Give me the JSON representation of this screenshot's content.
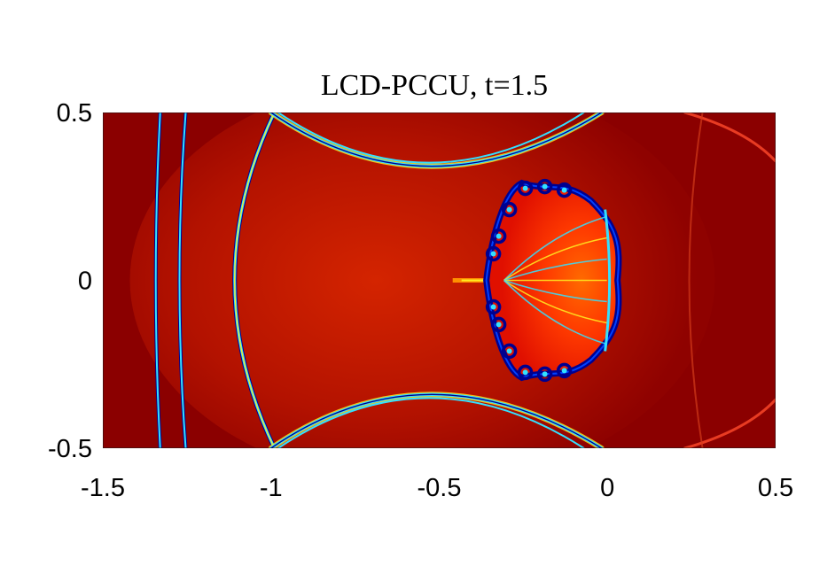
{
  "chart_data": {
    "type": "heatmap",
    "title": "LCD-PCCU, t=1.5",
    "xlabel": "",
    "ylabel": "",
    "xlim": [
      -1.5,
      0.5
    ],
    "ylim": [
      -0.5,
      0.5
    ],
    "x_ticks": [
      {
        "value": -1.5,
        "label": "-1.5"
      },
      {
        "value": -1.0,
        "label": "-1"
      },
      {
        "value": -0.5,
        "label": "-0.5"
      },
      {
        "value": 0.0,
        "label": "0"
      },
      {
        "value": 0.5,
        "label": "0.5"
      }
    ],
    "y_ticks": [
      {
        "value": 0.5,
        "label": "0.5"
      },
      {
        "value": 0.0,
        "label": "0"
      },
      {
        "value": -0.5,
        "label": "-0.5"
      }
    ],
    "colormap": "jet",
    "colors": {
      "background_field": "#8b0000",
      "mid_field": "#c81a00",
      "bubble_core": "#ff9000",
      "interface": "#00008f",
      "shock_cyan": "#33e0ff",
      "shock_yellow": "#ffee22"
    },
    "features": [
      {
        "kind": "vertical_shock",
        "x": -1.34
      },
      {
        "kind": "vertical_shock",
        "x": -1.28
      },
      {
        "kind": "curved_shock",
        "apex_x": -1.2,
        "top_x": -0.99,
        "bottom_x": -0.99
      },
      {
        "kind": "reflected_arc_top",
        "x_start": -1.0,
        "x_end": -0.07,
        "y_min": 0.28
      },
      {
        "kind": "reflected_arc_bottom",
        "x_start": -1.0,
        "x_end": -0.07,
        "y_max": -0.28
      },
      {
        "kind": "bubble_interface",
        "x_left": -0.36,
        "x_right": 0.03,
        "y_top": 0.29,
        "y_bottom": -0.29
      },
      {
        "kind": "jet",
        "x_start": -0.46,
        "x_end": -0.36,
        "y": 0.0
      },
      {
        "kind": "faint_wave",
        "x_start": 0.23,
        "x_end": 0.5
      }
    ]
  }
}
